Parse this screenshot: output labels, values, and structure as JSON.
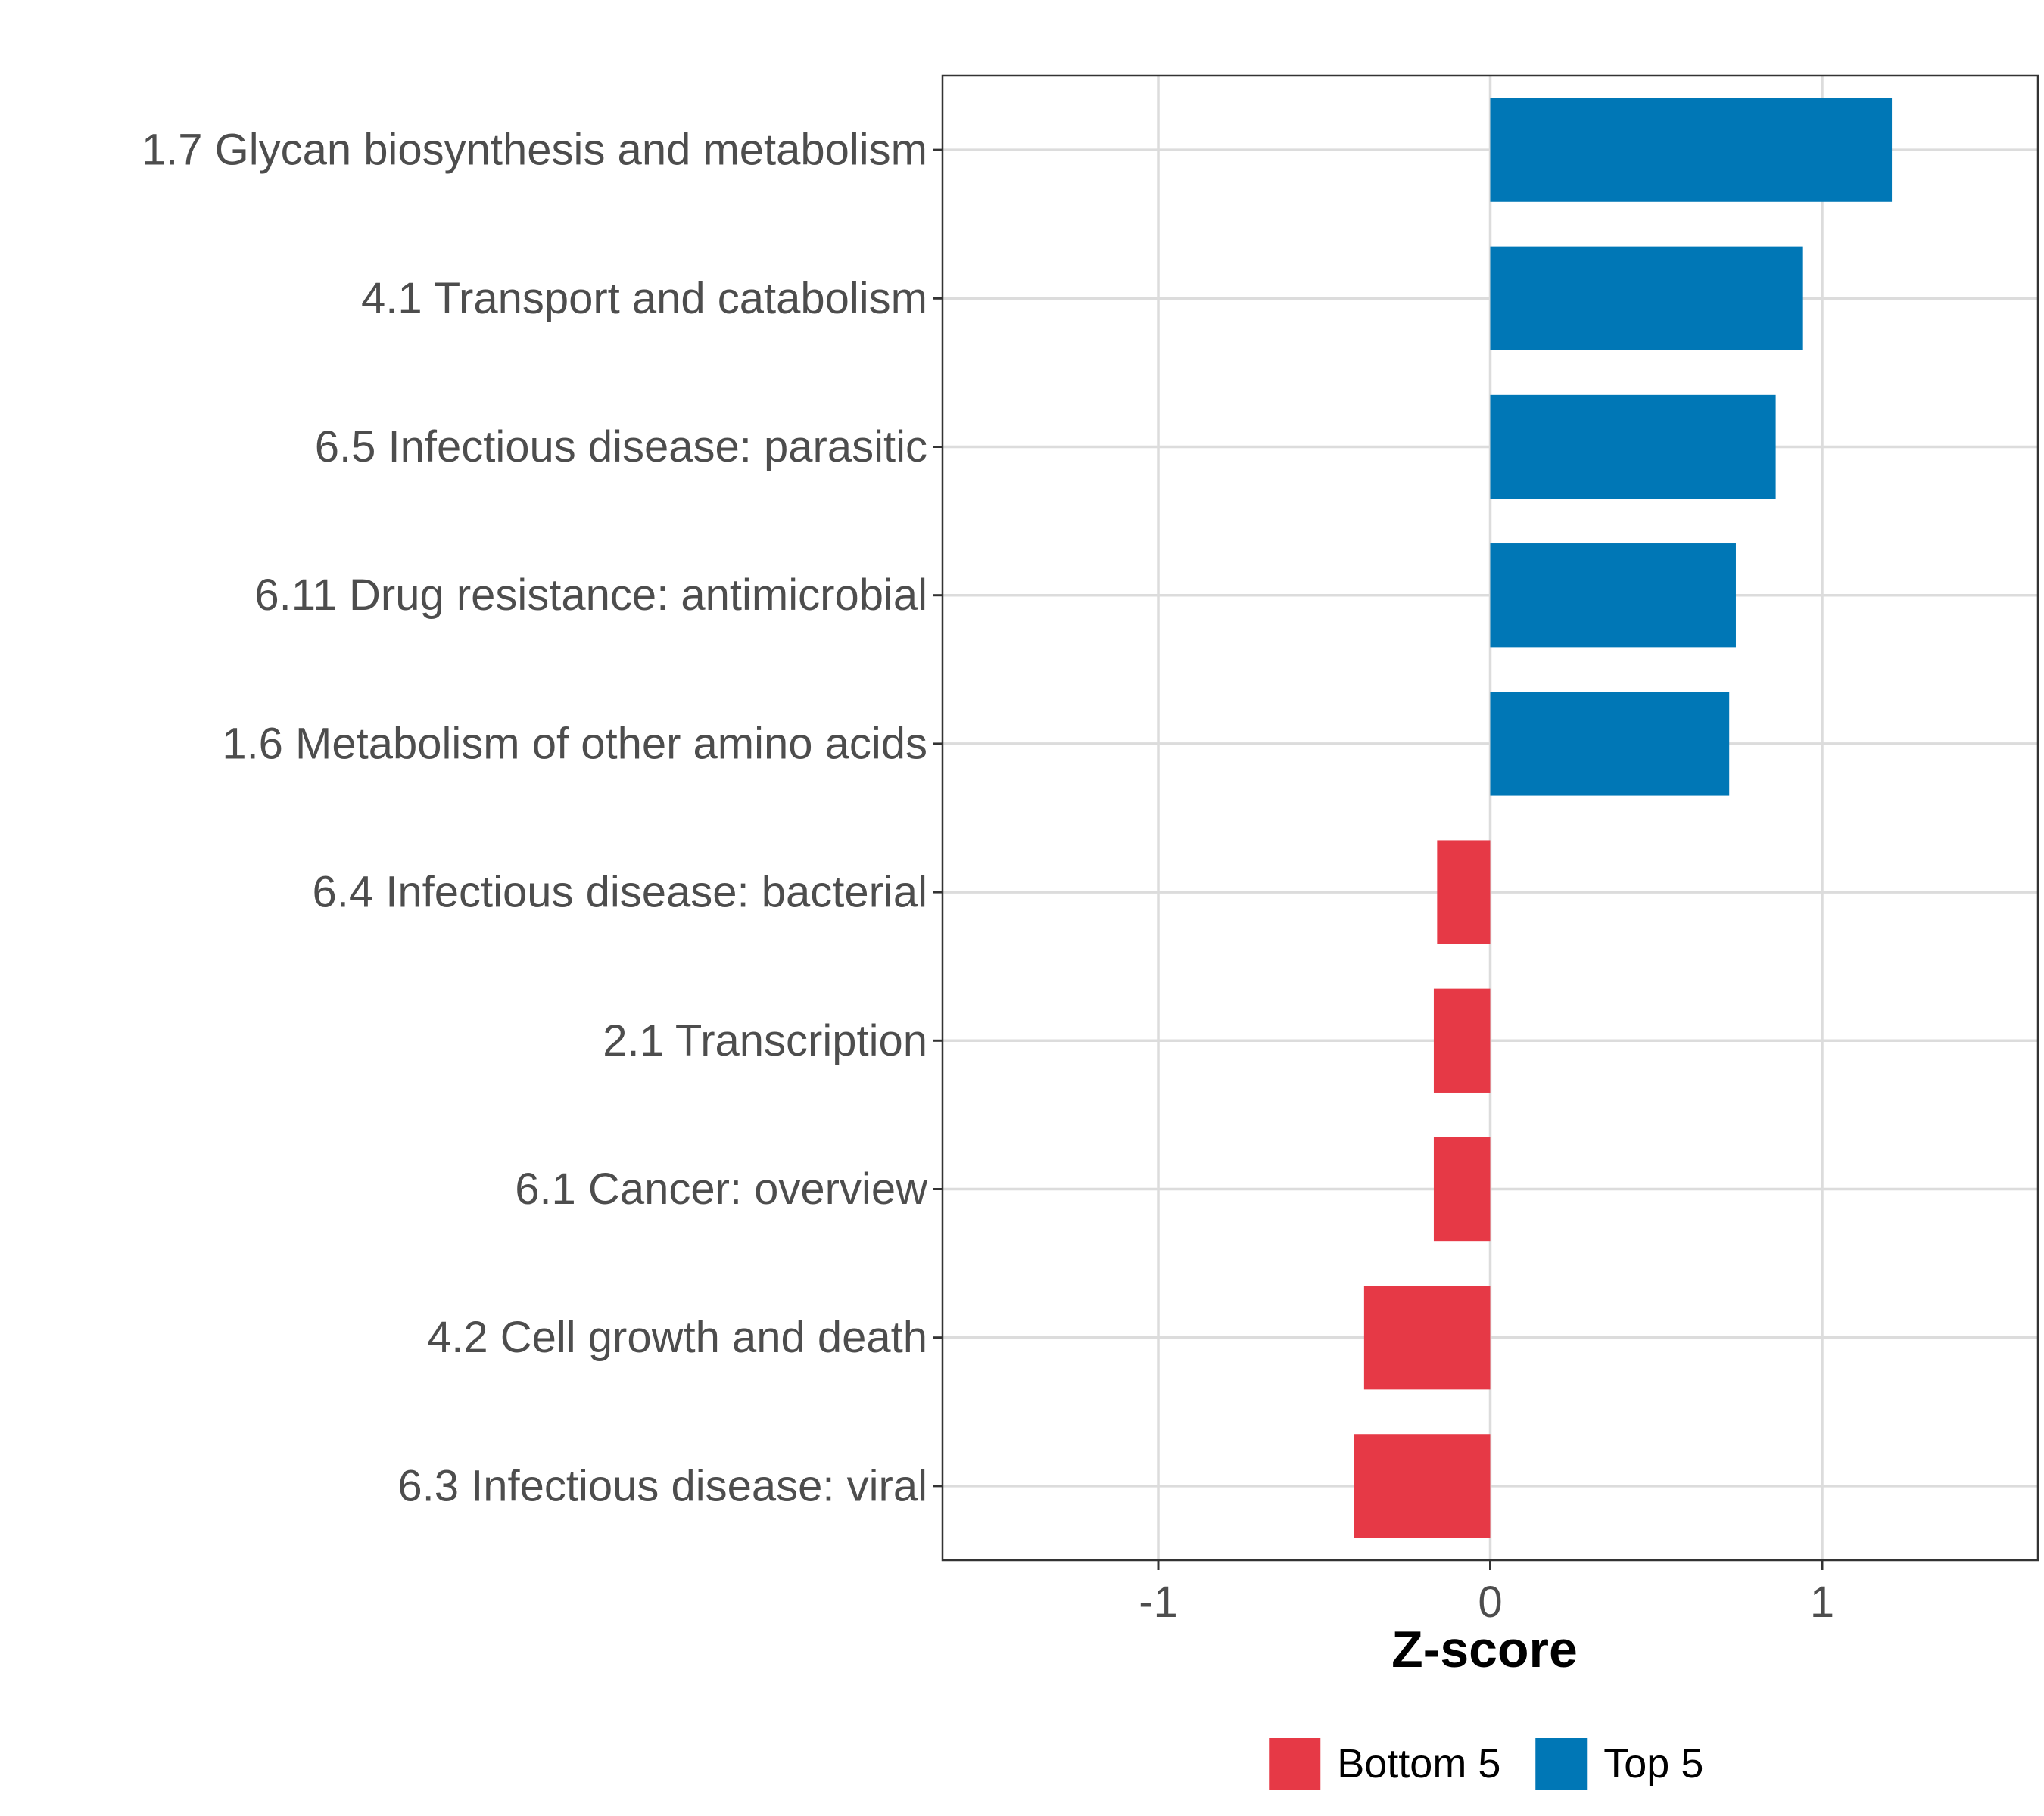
{
  "chart_data": {
    "type": "bar",
    "orientation": "horizontal",
    "title": "",
    "xlabel": "Z-score",
    "ylabel": "",
    "xlim": [
      -1.65,
      1.65
    ],
    "x_ticks": [
      -1,
      0,
      1
    ],
    "x_tick_labels": [
      "-1",
      "0",
      "1"
    ],
    "grid": true,
    "legend_position": "bottom",
    "categories": [
      "1.7 Glycan biosynthesis and metabolism",
      "4.1 Transport and catabolism",
      "6.5 Infectious disease: parasitic",
      "6.11 Drug resistance: antimicrobial",
      "1.6 Metabolism of other amino acids",
      "6.4 Infectious disease: bacterial",
      "2.1 Transcription",
      "6.1 Cancer: overview",
      "4.2 Cell growth and death",
      "6.3 Infectious disease: viral"
    ],
    "values": [
      1.21,
      0.94,
      0.86,
      0.74,
      0.72,
      -0.16,
      -0.17,
      -0.17,
      -0.38,
      -0.41
    ],
    "groups": [
      "Top 5",
      "Top 5",
      "Top 5",
      "Top 5",
      "Top 5",
      "Bottom 5",
      "Bottom 5",
      "Bottom 5",
      "Bottom 5",
      "Bottom 5"
    ],
    "legend": [
      {
        "name": "Bottom 5",
        "color": "#e63946"
      },
      {
        "name": "Top 5",
        "color": "#0077b6"
      }
    ]
  }
}
